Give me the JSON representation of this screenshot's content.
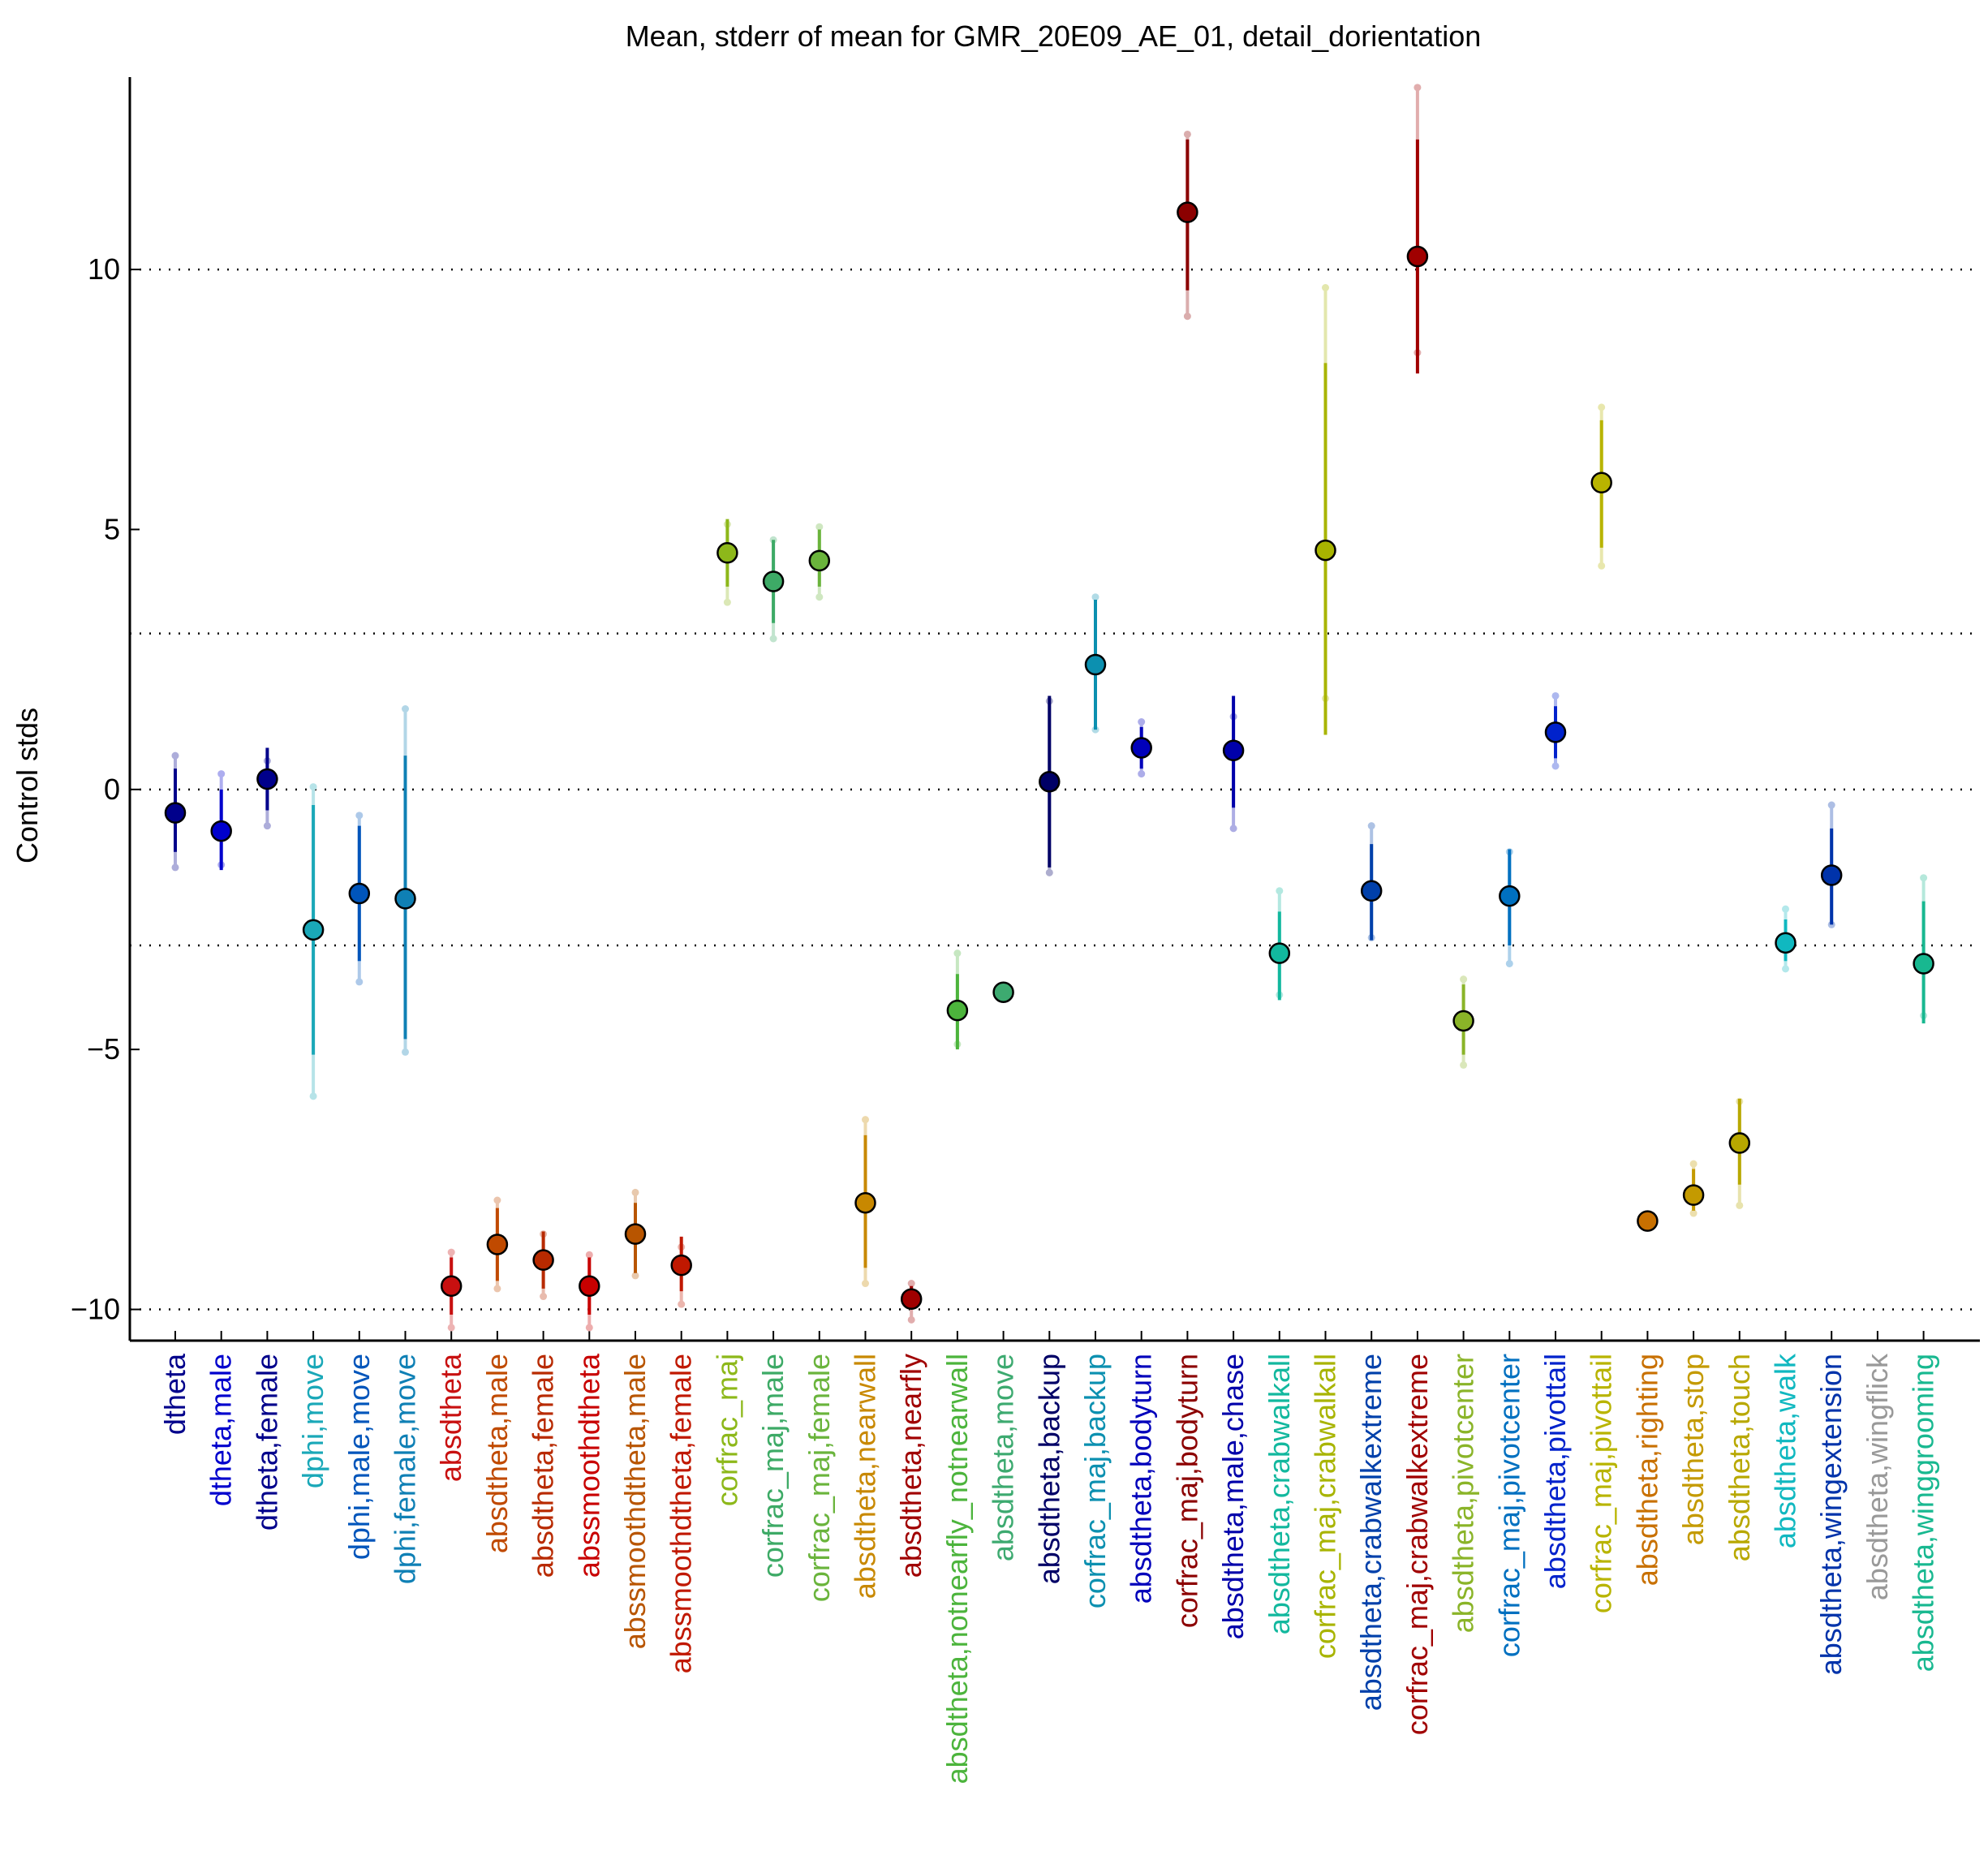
{
  "chart_data": {
    "type": "scatter",
    "title": "Mean, stderr of mean for GMR_20E09_AE_01, detail_dorientation",
    "xlabel": "",
    "ylabel": "Control stds",
    "ylim": [
      -10.6,
      13.7
    ],
    "yticks": [
      10,
      5,
      0,
      -5,
      -10
    ],
    "ytick_labels": [
      "10",
      "5",
      "0",
      "−5",
      "−10"
    ],
    "reference_lines": [
      10,
      3,
      0,
      -3,
      -10
    ],
    "categories": [
      "dtheta",
      "dtheta,male",
      "dtheta,female",
      "dphi,move",
      "dphi,male,move",
      "dphi,female,move",
      "absdtheta",
      "absdtheta,male",
      "absdtheta,female",
      "abssmoothdtheta",
      "abssmoothdtheta,male",
      "abssmoothdtheta,female",
      "corfrac_maj",
      "corfrac_maj,male",
      "corfrac_maj,female",
      "absdtheta,nearwall",
      "absdtheta,nearfly",
      "absdtheta,notnearfly_notnearwall",
      "absdtheta,move",
      "absdtheta,backup",
      "corfrac_maj,backup",
      "absdtheta,bodyturn",
      "corfrac_maj,bodyturn",
      "absdtheta,male,chase",
      "absdtheta,crabwalkall",
      "corfrac_maj,crabwalkall",
      "absdtheta,crabwalkextreme",
      "corfrac_maj,crabwalkextreme",
      "absdtheta,pivotcenter",
      "corfrac_maj,pivotcenter",
      "absdtheta,pivottail",
      "corfrac_maj,pivottail",
      "absdtheta,righting",
      "absdtheta,stop",
      "absdtheta,touch",
      "absdtheta,walk",
      "absdtheta,wingextension",
      "absdtheta,wingflick",
      "absdtheta,winggrooming"
    ],
    "mean": [
      -0.45,
      -0.8,
      0.2,
      -2.7,
      -2.0,
      -2.1,
      -9.55,
      -8.75,
      -9.05,
      -9.55,
      -8.55,
      -9.15,
      4.55,
      4.0,
      4.4,
      -7.95,
      -9.8,
      -4.25,
      -3.9,
      0.15,
      2.4,
      0.8,
      11.1,
      0.75,
      -3.15,
      4.6,
      -1.95,
      10.25,
      -4.45,
      -2.05,
      1.1,
      5.9,
      -8.3,
      -7.8,
      -6.8,
      -2.95,
      -1.65,
      null,
      -3.35
    ],
    "stderr_low": [
      -1.2,
      -1.55,
      -0.4,
      -5.1,
      -3.3,
      -4.8,
      -10.1,
      -9.45,
      -9.6,
      -10.1,
      -9.3,
      -9.65,
      3.9,
      3.2,
      3.9,
      -9.2,
      -10.0,
      -5.0,
      -3.9,
      -1.5,
      1.15,
      0.4,
      9.6,
      -0.35,
      -4.05,
      1.05,
      -2.9,
      8.0,
      -5.1,
      -3.0,
      0.6,
      4.65,
      -8.3,
      -8.1,
      -7.6,
      -3.3,
      -2.6,
      null,
      -4.5
    ],
    "stderr_high": [
      0.4,
      0.0,
      0.8,
      -0.3,
      -0.7,
      0.65,
      -9.0,
      -8.05,
      -8.5,
      -9.0,
      -7.95,
      -8.6,
      5.2,
      4.8,
      5.0,
      -6.65,
      -9.55,
      -3.55,
      -3.9,
      1.8,
      3.65,
      1.2,
      12.5,
      1.8,
      -2.35,
      8.2,
      -1.05,
      12.5,
      -3.75,
      -1.15,
      1.6,
      7.1,
      -8.3,
      -7.3,
      -5.95,
      -2.5,
      -0.75,
      null,
      -2.15
    ],
    "ci_low": [
      -1.5,
      -1.45,
      -0.7,
      -5.9,
      -3.7,
      -5.05,
      -10.35,
      -9.6,
      -9.75,
      -10.35,
      -9.35,
      -9.9,
      3.6,
      2.9,
      3.7,
      -9.5,
      -10.2,
      -4.9,
      -3.9,
      -1.6,
      1.15,
      0.3,
      9.1,
      -0.75,
      -3.95,
      1.75,
      -2.85,
      8.4,
      -5.3,
      -3.35,
      0.45,
      4.3,
      -8.3,
      -8.15,
      -8.0,
      -3.45,
      -2.6,
      null,
      -4.35
    ],
    "ci_high": [
      0.65,
      0.3,
      0.55,
      0.05,
      -0.5,
      1.55,
      -8.9,
      -7.9,
      -8.55,
      -8.95,
      -7.75,
      -8.8,
      5.1,
      4.8,
      5.05,
      -6.35,
      -9.5,
      -3.15,
      -3.9,
      1.7,
      3.7,
      1.3,
      12.6,
      1.4,
      -1.95,
      9.65,
      -0.7,
      13.5,
      -3.65,
      -1.2,
      1.8,
      7.35,
      -8.3,
      -7.2,
      -6.0,
      -2.3,
      -0.3,
      null,
      -1.7
    ],
    "colors": [
      "#00008b",
      "#0000cd",
      "#00008b",
      "#1aa8b8",
      "#0055bb",
      "#0f80b5",
      "#c81010",
      "#c04a00",
      "#b82a00",
      "#c80000",
      "#b85500",
      "#c01800",
      "#8db81a",
      "#3daa66",
      "#6ab43c",
      "#c88800",
      "#a00000",
      "#4cb43c",
      "#3daa70",
      "#000066",
      "#0c90b0",
      "#0000bb",
      "#8b0000",
      "#0000aa",
      "#12b89e",
      "#a8b400",
      "#0040aa",
      "#a00000",
      "#8ab428",
      "#0070c0",
      "#0022cc",
      "#b8b400",
      "#c87000",
      "#c49a00",
      "#b8a800",
      "#10b8c0",
      "#0033aa",
      "#999999",
      "#18b890"
    ]
  }
}
